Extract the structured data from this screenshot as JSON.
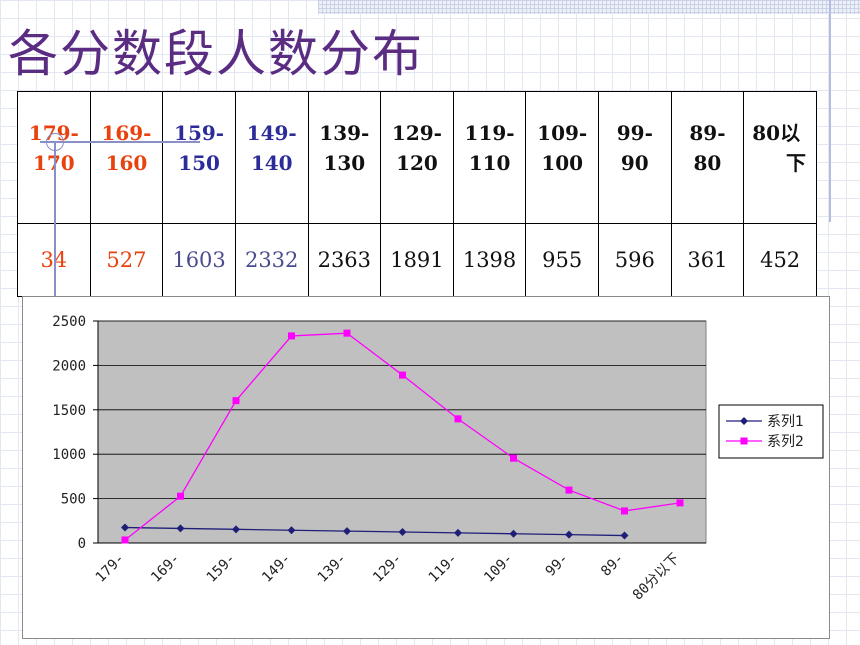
{
  "page": {
    "title": "各分数段人数分布"
  },
  "table": {
    "headers": [
      {
        "line1": "179-",
        "line2": "170",
        "color": "red"
      },
      {
        "line1": "169-",
        "line2": "160",
        "color": "red"
      },
      {
        "line1": "159-",
        "line2": "150",
        "color": "blue"
      },
      {
        "line1": "149-",
        "line2": "140",
        "color": "blue"
      },
      {
        "line1": "139-",
        "line2": "130",
        "color": "black"
      },
      {
        "line1": "129-",
        "line2": "120",
        "color": "black"
      },
      {
        "line1": "119-",
        "line2": "110",
        "color": "black"
      },
      {
        "line1": "109-",
        "line2": "100",
        "color": "black"
      },
      {
        "line1": "99-",
        "line2": "90",
        "color": "black"
      },
      {
        "line1": "89-",
        "line2": "80",
        "color": "black"
      },
      {
        "line1": "80以",
        "line2": "下",
        "color": "black"
      }
    ],
    "values": [
      "34",
      "527",
      "1603",
      "2332",
      "2363",
      "1891",
      "1398",
      "955",
      "596",
      "361",
      "452"
    ]
  },
  "chart_data": {
    "type": "line",
    "categories": [
      "179-",
      "169-",
      "159-",
      "149-",
      "139-",
      "129-",
      "119-",
      "109-",
      "99-",
      "89-",
      "80分以下"
    ],
    "series": [
      {
        "name": "系列1",
        "color": "#1f1f7a",
        "marker": "diamond",
        "values": [
          174,
          164,
          154,
          144,
          134,
          124,
          114,
          104,
          94,
          84,
          null
        ]
      },
      {
        "name": "系列2",
        "color": "#ff00ff",
        "marker": "square",
        "values": [
          34,
          527,
          1603,
          2332,
          2363,
          1891,
          1398,
          955,
          596,
          361,
          452
        ]
      }
    ],
    "ylim": [
      0,
      2500
    ],
    "yticks": [
      "0",
      "500",
      "1000",
      "1500",
      "2000",
      "2500"
    ],
    "grid": true,
    "legend": "right",
    "plot_background": "#c0c0c0"
  }
}
